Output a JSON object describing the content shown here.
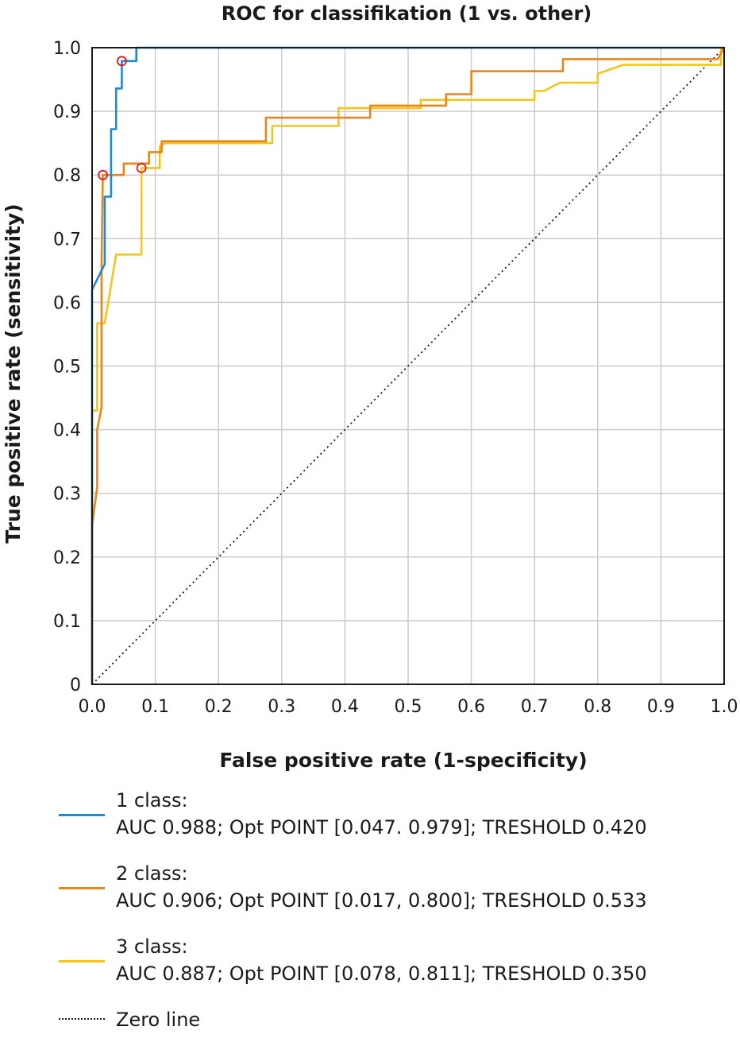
{
  "chart_data": {
    "type": "line",
    "title": "ROC for classifikation (1 vs. other)",
    "xlabel": "False positive rate (1-specificity)",
    "ylabel": "True positive rate (sensitivity)",
    "xlim": [
      0,
      1
    ],
    "ylim": [
      0,
      1
    ],
    "x_ticks": [
      "0.0",
      "0.1",
      "0.2",
      "0.3",
      "0.4",
      "0.5",
      "0.6",
      "0.7",
      "0.8",
      "0.9",
      "1.0"
    ],
    "y_ticks": [
      "0",
      "0.1",
      "0.2",
      "0.3",
      "0.4",
      "0.5",
      "0.6",
      "0.7",
      "0.8",
      "0.9",
      "1.0"
    ],
    "grid": true,
    "legend_position": "bottom",
    "series": [
      {
        "name": "1 class:",
        "label": "AUC 0.988; Opt POINT [0.047. 0.979]; TRESHOLD 0.420",
        "color": "#1f8ad0",
        "optimal_point": [
          0.047,
          0.979
        ],
        "points": [
          [
            0,
            0
          ],
          [
            0,
            0.43
          ],
          [
            0,
            0.62
          ],
          [
            0.02,
            0.66
          ],
          [
            0.02,
            0.766
          ],
          [
            0.03,
            0.766
          ],
          [
            0.03,
            0.872
          ],
          [
            0.038,
            0.872
          ],
          [
            0.038,
            0.936
          ],
          [
            0.047,
            0.936
          ],
          [
            0.047,
            0.979
          ],
          [
            0.07,
            0.979
          ],
          [
            0.07,
            1.0
          ],
          [
            1.0,
            1.0
          ]
        ]
      },
      {
        "name": "2 class:",
        "label": "AUC 0.906; Opt POINT [0.017, 0.800]; TRESHOLD 0.533",
        "color": "#e8861a",
        "optimal_point": [
          0.017,
          0.8
        ],
        "points": [
          [
            0,
            0
          ],
          [
            0,
            0.25
          ],
          [
            0.008,
            0.31
          ],
          [
            0.008,
            0.4
          ],
          [
            0.015,
            0.435
          ],
          [
            0.015,
            0.66
          ],
          [
            0.017,
            0.8
          ],
          [
            0.05,
            0.8
          ],
          [
            0.05,
            0.818
          ],
          [
            0.09,
            0.818
          ],
          [
            0.09,
            0.836
          ],
          [
            0.11,
            0.836
          ],
          [
            0.11,
            0.853
          ],
          [
            0.275,
            0.853
          ],
          [
            0.275,
            0.89
          ],
          [
            0.44,
            0.89
          ],
          [
            0.44,
            0.909
          ],
          [
            0.525,
            0.909
          ],
          [
            0.525,
            0.909
          ],
          [
            0.56,
            0.909
          ],
          [
            0.56,
            0.927
          ],
          [
            0.6,
            0.927
          ],
          [
            0.6,
            0.963
          ],
          [
            0.745,
            0.963
          ],
          [
            0.745,
            0.982
          ],
          [
            0.99,
            0.982
          ],
          [
            1.0,
            1.0
          ]
        ]
      },
      {
        "name": "3 class:",
        "label": "AUC 0.887; Opt POINT [0.078, 0.811]; TRESHOLD 0.350",
        "color": "#f5c518",
        "optimal_point": [
          0.078,
          0.811
        ],
        "points": [
          [
            0,
            0
          ],
          [
            0,
            0.43
          ],
          [
            0.008,
            0.43
          ],
          [
            0.008,
            0.567
          ],
          [
            0.02,
            0.567
          ],
          [
            0.038,
            0.675
          ],
          [
            0.078,
            0.675
          ],
          [
            0.078,
            0.811
          ],
          [
            0.107,
            0.811
          ],
          [
            0.107,
            0.845
          ],
          [
            0.115,
            0.85
          ],
          [
            0.285,
            0.85
          ],
          [
            0.285,
            0.877
          ],
          [
            0.39,
            0.877
          ],
          [
            0.39,
            0.905
          ],
          [
            0.52,
            0.905
          ],
          [
            0.52,
            0.918
          ],
          [
            0.7,
            0.918
          ],
          [
            0.7,
            0.932
          ],
          [
            0.715,
            0.932
          ],
          [
            0.74,
            0.945
          ],
          [
            0.8,
            0.945
          ],
          [
            0.8,
            0.959
          ],
          [
            0.84,
            0.973
          ],
          [
            0.995,
            0.973
          ],
          [
            0.995,
            1.0
          ]
        ]
      }
    ],
    "reference_line": {
      "name": "Zero line",
      "points": [
        [
          0,
          0
        ],
        [
          1,
          1
        ]
      ]
    }
  }
}
